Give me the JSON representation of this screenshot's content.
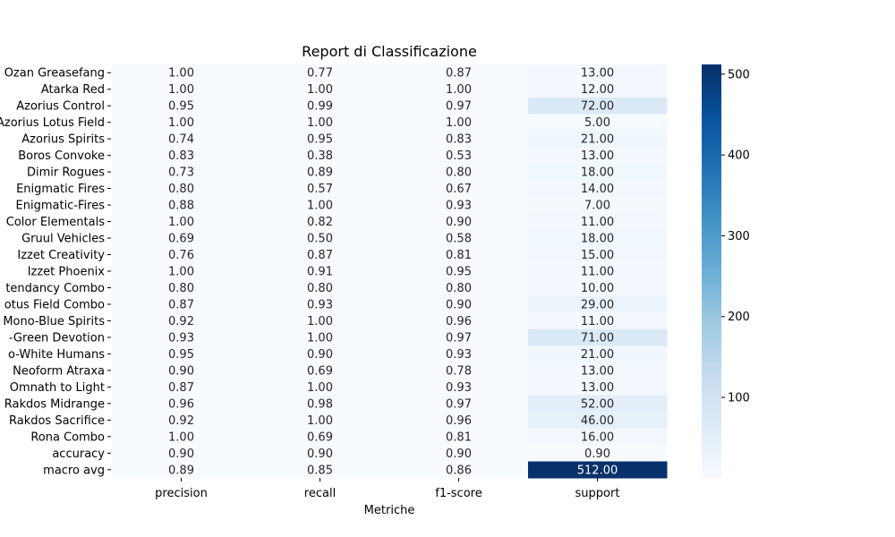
{
  "chart_data": {
    "type": "heatmap",
    "title": "Report di Classificazione",
    "xlabel": "Metriche",
    "ylabel": "",
    "columns": [
      "precision",
      "recall",
      "f1-score",
      "support"
    ],
    "rows": [
      "Ozan Greasefang",
      "Atarka Red",
      "Azorius Control",
      "Azorius Lotus Field",
      "Azorius Spirits",
      "Boros Convoke",
      "Dimir Rogues",
      "Enigmatic Fires",
      "Enigmatic-Fires",
      "Color Elementals",
      "Gruul Vehicles",
      "Izzet Creativity",
      "Izzet Phoenix",
      "tendancy Combo",
      "otus Field Combo",
      "Mono-Blue Spirits",
      "-Green Devotion",
      "o-White Humans",
      "Neoform Atraxa",
      "Omnath to Light",
      "Rakdos Midrange",
      "Rakdos Sacrifice",
      "Rona Combo",
      "accuracy",
      "macro avg"
    ],
    "values": [
      [
        1.0,
        0.77,
        0.87,
        13.0
      ],
      [
        1.0,
        1.0,
        1.0,
        12.0
      ],
      [
        0.95,
        0.99,
        0.97,
        72.0
      ],
      [
        1.0,
        1.0,
        1.0,
        5.0
      ],
      [
        0.74,
        0.95,
        0.83,
        21.0
      ],
      [
        0.83,
        0.38,
        0.53,
        13.0
      ],
      [
        0.73,
        0.89,
        0.8,
        18.0
      ],
      [
        0.8,
        0.57,
        0.67,
        14.0
      ],
      [
        0.88,
        1.0,
        0.93,
        7.0
      ],
      [
        1.0,
        0.82,
        0.9,
        11.0
      ],
      [
        0.69,
        0.5,
        0.58,
        18.0
      ],
      [
        0.76,
        0.87,
        0.81,
        15.0
      ],
      [
        1.0,
        0.91,
        0.95,
        11.0
      ],
      [
        0.8,
        0.8,
        0.8,
        10.0
      ],
      [
        0.87,
        0.93,
        0.9,
        29.0
      ],
      [
        0.92,
        1.0,
        0.96,
        11.0
      ],
      [
        0.93,
        1.0,
        0.97,
        71.0
      ],
      [
        0.95,
        0.9,
        0.93,
        21.0
      ],
      [
        0.9,
        0.69,
        0.78,
        13.0
      ],
      [
        0.87,
        1.0,
        0.93,
        13.0
      ],
      [
        0.96,
        0.98,
        0.97,
        52.0
      ],
      [
        0.92,
        1.0,
        0.96,
        46.0
      ],
      [
        1.0,
        0.69,
        0.81,
        16.0
      ],
      [
        0.9,
        0.9,
        0.9,
        0.9
      ],
      [
        0.89,
        0.85,
        0.86,
        512.0
      ]
    ],
    "value_format_decimals": 2,
    "colormap": "Blues",
    "colormap_stops": [
      "#f7fbff",
      "#deebf7",
      "#c6dbef",
      "#9ecae1",
      "#6baed6",
      "#4292c6",
      "#2171b5",
      "#08519c",
      "#08306b"
    ],
    "vmin": 0.38,
    "vmax": 512,
    "colorbar_ticks": [
      100,
      200,
      300,
      400,
      500
    ]
  }
}
